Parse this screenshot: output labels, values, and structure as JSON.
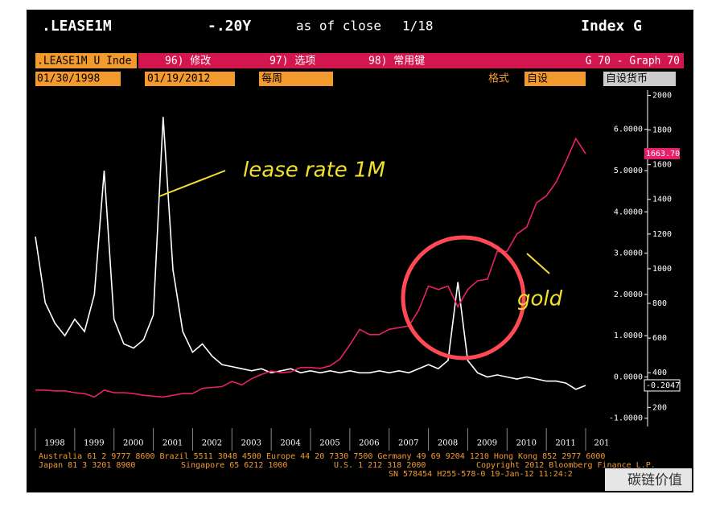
{
  "terminal": {
    "title_left": ".LEASE1M",
    "title_mid": "-.20Y",
    "title_asof": "as of close",
    "title_date": "1/18",
    "title_right": "Index G",
    "security": ".LEASE1M U Inde",
    "menu": [
      "96) 修改",
      "97) 选项",
      "98) 常用键"
    ],
    "graph": "G 70 - Graph 70",
    "start_date": "01/30/1998",
    "end_date": "01/19/2012",
    "period": "每周",
    "format_label": "格式",
    "format_value": "自设",
    "currency": "自设货币",
    "footer": [
      "Australia 61 2 9777 8600 Brazil 5511 3048 4500 Europe 44 20 7330 7500 Germany 49 69 9204 1210 Hong Kong 852 2977 6000",
      "Japan 81 3 3201 8900",
      "Singapore 65 6212 1000",
      "U.S. 1 212 318 2000",
      "Copyright 2012 Bloomberg Finance L.P.",
      "SN 578454 H255-578-0 19-Jan-12 11:24:2"
    ],
    "watermark": "碳链价值"
  },
  "chart_data": {
    "type": "line",
    "annotations": [
      "lease rate 1M",
      "gold"
    ],
    "x": [
      1998,
      1998.25,
      1998.5,
      1998.75,
      1999,
      1999.25,
      1999.5,
      1999.75,
      2000,
      2000.25,
      2000.5,
      2000.75,
      2001,
      2001.25,
      2001.5,
      2001.75,
      2002,
      2002.25,
      2002.5,
      2002.75,
      2003,
      2003.25,
      2003.5,
      2003.75,
      2004,
      2004.25,
      2004.5,
      2004.75,
      2005,
      2005.25,
      2005.5,
      2005.75,
      2006,
      2006.25,
      2006.5,
      2006.75,
      2007,
      2007.25,
      2007.5,
      2007.75,
      2008,
      2008.25,
      2008.5,
      2008.75,
      2009,
      2009.25,
      2009.5,
      2009.75,
      2010,
      2010.25,
      2010.5,
      2010.75,
      2011,
      2011.25,
      2011.5,
      2011.75,
      2012
    ],
    "xlim": [
      1998,
      2012.45
    ],
    "xticks": [
      1998,
      1999,
      2000,
      2001,
      2002,
      2003,
      2004,
      2005,
      2006,
      2007,
      2008,
      2009,
      2010,
      2011,
      {
        "value": 2012,
        "label": "201"
      }
    ],
    "ylim": [
      -1.2,
      6.95
    ],
    "yticks": [
      {
        "value": -1,
        "label": "-1.0000"
      },
      {
        "value": 0,
        "label": "0.0000"
      },
      {
        "value": 1,
        "label": "1.0000"
      },
      {
        "value": 2,
        "label": "2.0000"
      },
      {
        "value": 3,
        "label": "3.0000"
      },
      {
        "value": 4,
        "label": "4.0000"
      },
      {
        "value": 5,
        "label": "5.0000"
      },
      {
        "value": 6,
        "label": "6.0000"
      }
    ],
    "y2lim": [
      90,
      2030
    ],
    "y2ticks": [
      200,
      400,
      600,
      800,
      1000,
      1200,
      1400,
      1600,
      1800,
      2000
    ],
    "series": [
      {
        "name": "lease rate 1M",
        "color": "#ffffff",
        "values": [
          3.4,
          1.8,
          1.3,
          1.0,
          1.4,
          1.1,
          2.0,
          5.0,
          1.4,
          0.8,
          0.7,
          0.9,
          1.5,
          6.3,
          2.6,
          1.1,
          0.6,
          0.8,
          0.5,
          0.3,
          0.25,
          0.2,
          0.15,
          0.2,
          0.1,
          0.15,
          0.2,
          0.1,
          0.15,
          0.1,
          0.15,
          0.1,
          0.15,
          0.1,
          0.1,
          0.15,
          0.1,
          0.15,
          0.1,
          0.2,
          0.3,
          0.2,
          0.4,
          2.3,
          0.4,
          0.1,
          0.0,
          0.05,
          0.0,
          -0.05,
          0.0,
          -0.05,
          -0.1,
          -0.1,
          -0.15,
          -0.3,
          -0.2047
        ],
        "value_labels": [
          null,
          null,
          null,
          null,
          null,
          null,
          null,
          null,
          null,
          null,
          null,
          null,
          null,
          null,
          null,
          null,
          null,
          null,
          null,
          null,
          null,
          null,
          null,
          null,
          null,
          null,
          null,
          null,
          null,
          null,
          null,
          null,
          null,
          null,
          null,
          null,
          null,
          null,
          null,
          null,
          null,
          null,
          null,
          null,
          null,
          null,
          null,
          null,
          null,
          null,
          null,
          null,
          null,
          null,
          null,
          null,
          "-0.2047"
        ]
      },
      {
        "name": "gold",
        "color": "#e8206a",
        "axis": "y2",
        "values": [
          300,
          300,
          295,
          295,
          285,
          280,
          260,
          300,
          285,
          285,
          280,
          270,
          265,
          260,
          270,
          280,
          280,
          310,
          315,
          320,
          350,
          330,
          365,
          390,
          410,
          400,
          405,
          430,
          430,
          425,
          440,
          480,
          560,
          650,
          620,
          620,
          650,
          660,
          670,
          760,
          900,
          880,
          900,
          780,
          880,
          930,
          940,
          1100,
          1100,
          1200,
          1240,
          1380,
          1420,
          1500,
          1620,
          1750,
          1663.7
        ],
        "value_labels": [
          null,
          null,
          null,
          null,
          null,
          null,
          null,
          null,
          null,
          null,
          null,
          null,
          null,
          null,
          null,
          null,
          null,
          null,
          null,
          null,
          null,
          null,
          null,
          null,
          null,
          null,
          null,
          null,
          null,
          null,
          null,
          null,
          null,
          null,
          null,
          null,
          null,
          null,
          null,
          null,
          null,
          null,
          null,
          null,
          null,
          null,
          null,
          null,
          null,
          null,
          null,
          null,
          null,
          null,
          null,
          null,
          "1663.70"
        ]
      }
    ]
  }
}
